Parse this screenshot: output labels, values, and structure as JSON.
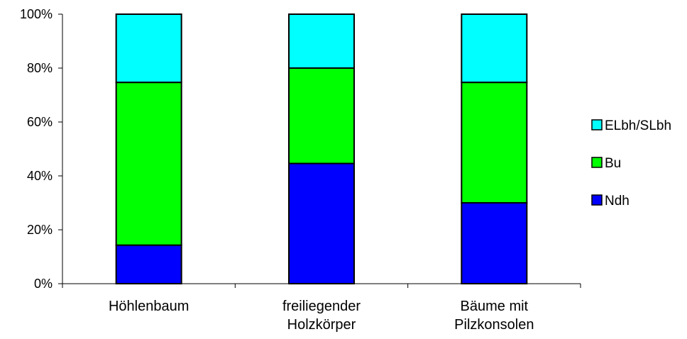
{
  "chart_data": {
    "type": "bar",
    "stacked": "percent",
    "categories": [
      "Höhlenbaum",
      "freiliegender\nHolzkörper",
      "Bäume mit\nPilzkonsolen"
    ],
    "series": [
      {
        "name": "Ndh",
        "values": [
          14.3,
          44.6,
          30.0
        ],
        "color": "#0000ff"
      },
      {
        "name": "Bu",
        "values": [
          60.4,
          35.4,
          44.7
        ],
        "color": "#00ff00"
      },
      {
        "name": "ELbh/SLbh",
        "values": [
          25.3,
          20.0,
          25.3
        ],
        "color": "#00ffff"
      }
    ],
    "y_ticks": [
      "0%",
      "20%",
      "40%",
      "60%",
      "80%",
      "100%"
    ],
    "ylim": [
      0,
      100
    ],
    "grid": false,
    "legend_position": "right",
    "legend_order": [
      "ELbh/SLbh",
      "Bu",
      "Ndh"
    ]
  }
}
